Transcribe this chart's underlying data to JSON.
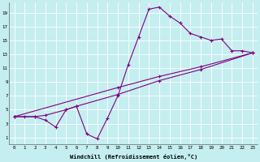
{
  "title": "",
  "xlabel": "Windchill (Refroidissement éolien,°C)",
  "bg_color": "#c5eef0",
  "line_color": "#800080",
  "xlim": [
    -0.5,
    23.5
  ],
  "ylim": [
    0,
    20.5
  ],
  "xticks": [
    0,
    1,
    2,
    3,
    4,
    5,
    6,
    7,
    8,
    9,
    10,
    11,
    12,
    13,
    14,
    15,
    16,
    17,
    18,
    19,
    20,
    21,
    22,
    23
  ],
  "yticks": [
    1,
    3,
    5,
    7,
    9,
    11,
    13,
    15,
    17,
    19
  ],
  "grid_color": "#ffffff",
  "series1": [
    [
      0,
      4
    ],
    [
      1,
      4
    ],
    [
      2,
      4
    ],
    [
      3,
      3.5
    ],
    [
      4,
      2.5
    ],
    [
      5,
      5
    ],
    [
      6,
      5.5
    ],
    [
      7,
      1.5
    ],
    [
      8,
      0.8
    ],
    [
      9,
      3.8
    ],
    [
      10,
      7
    ],
    [
      11,
      11.5
    ],
    [
      12,
      15.5
    ],
    [
      13,
      19.5
    ],
    [
      14,
      19.8
    ],
    [
      15,
      18.5
    ],
    [
      16,
      17.5
    ],
    [
      17,
      16
    ],
    [
      18,
      15.5
    ],
    [
      19,
      15
    ],
    [
      20,
      15.2
    ],
    [
      21,
      13.5
    ],
    [
      22,
      13.5
    ],
    [
      23,
      13.2
    ]
  ],
  "series2": [
    [
      0,
      4
    ],
    [
      2,
      4
    ],
    [
      3,
      4.2
    ],
    [
      5,
      5
    ],
    [
      6,
      5.5
    ],
    [
      10,
      7.2
    ],
    [
      14,
      9.2
    ],
    [
      18,
      10.8
    ],
    [
      23,
      13.2
    ]
  ],
  "series3": [
    [
      0,
      4
    ],
    [
      10,
      8.2
    ],
    [
      14,
      9.8
    ],
    [
      18,
      11.2
    ],
    [
      23,
      13.2
    ]
  ]
}
